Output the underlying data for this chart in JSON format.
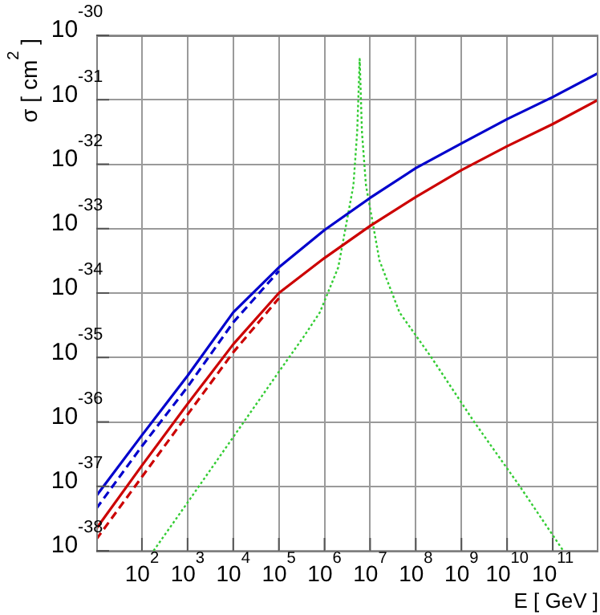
{
  "chart_data": {
    "type": "line",
    "xlabel": "E [ GeV ]",
    "ylabel": "σ [ cm$^{2}$ ]",
    "log": "xy",
    "grid": true,
    "legend": false,
    "xlim": [
      10.0,
      1000000000000.0
    ],
    "ylim": [
      1e-38,
      1e-30
    ],
    "xticks": [
      {
        "value": 100.0,
        "label": "10$^{2}$"
      },
      {
        "value": 1000.0,
        "label": "10$^{3}$"
      },
      {
        "value": 10000.0,
        "label": "10$^{4}$"
      },
      {
        "value": 100000.0,
        "label": "10$^{5}$"
      },
      {
        "value": 1000000.0,
        "label": "10$^{6}$"
      },
      {
        "value": 10000000.0,
        "label": "10$^{7}$"
      },
      {
        "value": 100000000.0,
        "label": "10$^{8}$"
      },
      {
        "value": 1000000000.0,
        "label": "10$^{9}$"
      },
      {
        "value": 10000000000.0,
        "label": "10$^{10}$"
      },
      {
        "value": 100000000000.0,
        "label": "10$^{11}$"
      }
    ],
    "yticks": [
      {
        "value": 1e-38,
        "label": "10$^{-38}$"
      },
      {
        "value": 1e-37,
        "label": "10$^{-37}$"
      },
      {
        "value": 1e-36,
        "label": "10$^{-36}$"
      },
      {
        "value": 1e-35,
        "label": "10$^{-35}$"
      },
      {
        "value": 1e-34,
        "label": "10$^{-34}$"
      },
      {
        "value": 1e-33,
        "label": "10$^{-33}$"
      },
      {
        "value": 1e-32,
        "label": "10$^{-32}$"
      },
      {
        "value": 1e-31,
        "label": "10$^{-31}$"
      },
      {
        "value": 1e-30,
        "label": "10$^{-30}$"
      }
    ],
    "x": [
      10.0,
      100.0,
      1000.0,
      10000.0,
      100000.0,
      1000000.0,
      10000000.0,
      100000000.0,
      1000000000.0,
      10000000000.0,
      100000000000.0,
      1000000000000.0
    ],
    "series": [
      {
        "color": "#0000cc",
        "line_style": "solid",
        "values": [
          7.1e-38,
          6.2e-37,
          5.2e-36,
          5e-35,
          2.5e-34,
          9.5e-34,
          3e-33,
          8.7e-33,
          2.1e-32,
          5e-32,
          1.1e-31,
          2.6e-31
        ]
      },
      {
        "color": "#0000cc",
        "line_style": "dashed",
        "values": [
          4.5e-38,
          4.2e-37,
          3.5e-36,
          3.5e-35,
          2.2e-34,
          null,
          null,
          null,
          null,
          null,
          null,
          null
        ]
      },
      {
        "color": "#cc0000",
        "line_style": "solid",
        "values": [
          2.2e-38,
          2.1e-37,
          1.9e-36,
          1.6e-35,
          1e-34,
          3.5e-34,
          1.1e-33,
          3.1e-33,
          8.1e-33,
          1.9e-32,
          4.2e-32,
          1e-31
        ]
      },
      {
        "color": "#cc0000",
        "line_style": "dashed",
        "values": [
          1.5e-38,
          1.4e-37,
          1.3e-36,
          1.2e-35,
          8.3e-35,
          null,
          null,
          null,
          null,
          null,
          null,
          null
        ]
      },
      {
        "color": "#33cc33",
        "line_style": "dotted",
        "x": [
          180.0,
          1000.0,
          10000.0,
          100000.0,
          350000.0,
          790000.0,
          2000000.0,
          4300000.0,
          5200000.0,
          5900000.0,
          6600000.0,
          8100000.0,
          16000000.0,
          44000000.0,
          220000000.0,
          1900000000.0,
          19000000000.0,
          170000000000.0
        ],
        "values": [
          1e-38,
          5.6e-38,
          5.8e-37,
          6e-36,
          2.1e-35,
          5e-35,
          2.5e-34,
          4.7e-33,
          3.2e-32,
          4.3e-31,
          3.2e-32,
          4.7e-33,
          3.2e-34,
          5e-35,
          1e-35,
          1e-36,
          1e-37,
          1e-38
        ]
      }
    ]
  }
}
